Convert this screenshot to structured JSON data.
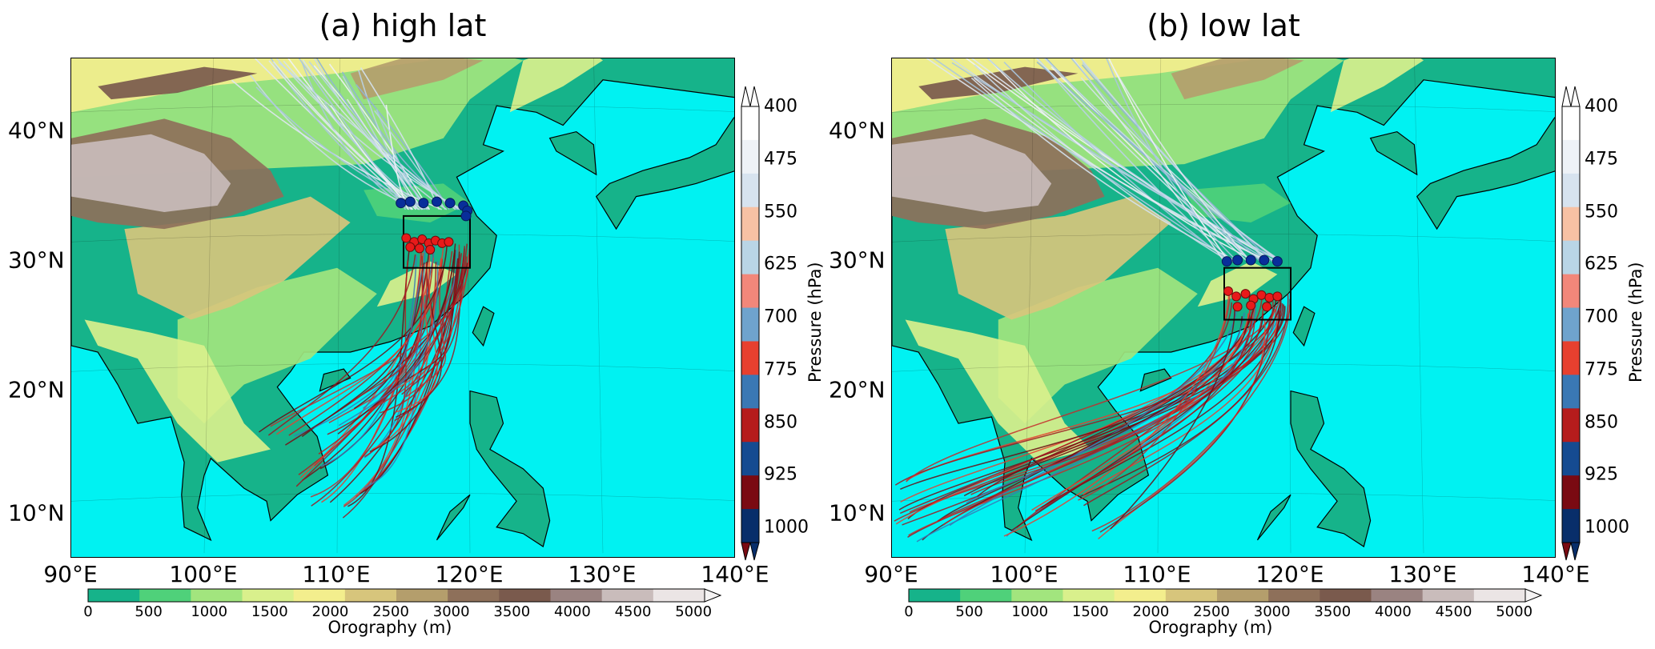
{
  "panels": [
    {
      "title": "(a) high lat",
      "traj_color_label": "Pressure (hPa)",
      "box": {
        "lon": [
          115,
          120
        ],
        "lat": [
          28,
          32
        ]
      },
      "start_points_blue_lonlat": [
        [
          114.8,
          33.0
        ],
        [
          115.5,
          33.1
        ],
        [
          116.5,
          33.0
        ],
        [
          117.5,
          33.1
        ],
        [
          118.5,
          33.0
        ],
        [
          119.5,
          32.8
        ],
        [
          119.8,
          32.4
        ],
        [
          119.7,
          32.0
        ]
      ],
      "start_points_red_lonlat": [
        [
          115.2,
          30.3
        ],
        [
          115.8,
          30.0
        ],
        [
          116.4,
          30.2
        ],
        [
          116.9,
          29.9
        ],
        [
          117.4,
          30.1
        ],
        [
          117.9,
          29.9
        ],
        [
          118.4,
          30.0
        ],
        [
          115.5,
          29.6
        ],
        [
          116.2,
          29.5
        ],
        [
          117.0,
          29.4
        ]
      ],
      "traj_blue_endpoints_lonlat": [
        [
          104,
          45
        ],
        [
          106,
          45
        ],
        [
          108,
          44.5
        ],
        [
          110,
          44
        ],
        [
          112,
          43.5
        ],
        [
          108,
          45.5
        ],
        [
          105,
          44
        ],
        [
          103,
          43
        ],
        [
          110,
          42
        ],
        [
          113,
          41.5
        ]
      ],
      "traj_red_endpoints_lonlat": [
        [
          106,
          11
        ],
        [
          108,
          9.5
        ],
        [
          110,
          8.5
        ],
        [
          111,
          10
        ],
        [
          108,
          12.5
        ],
        [
          106,
          14
        ],
        [
          112,
          13
        ],
        [
          113,
          16
        ],
        [
          114,
          18
        ],
        [
          104,
          15
        ],
        [
          109,
          15
        ],
        [
          111,
          17
        ]
      ]
    },
    {
      "title": "(b) low lat",
      "traj_color_label": "Pressure (hPa)",
      "box": {
        "lon": [
          115,
          120
        ],
        "lat": [
          24,
          28
        ]
      },
      "start_points_blue_lonlat": [
        [
          115.2,
          28.5
        ],
        [
          116.0,
          28.6
        ],
        [
          117.0,
          28.6
        ],
        [
          118.0,
          28.6
        ],
        [
          119.0,
          28.5
        ]
      ],
      "start_points_red_lonlat": [
        [
          115.3,
          26.2
        ],
        [
          115.9,
          25.8
        ],
        [
          116.6,
          26.0
        ],
        [
          117.2,
          25.6
        ],
        [
          117.8,
          25.9
        ],
        [
          118.4,
          25.7
        ],
        [
          119.0,
          25.8
        ],
        [
          116.0,
          25.0
        ],
        [
          117.0,
          25.1
        ],
        [
          118.2,
          25.0
        ]
      ],
      "traj_blue_endpoints_lonlat": [
        [
          92,
          45.5
        ],
        [
          95,
          45
        ],
        [
          98,
          45
        ],
        [
          101,
          44.5
        ],
        [
          104,
          44
        ],
        [
          100,
          45.5
        ],
        [
          96,
          44
        ],
        [
          103,
          45.5
        ],
        [
          106,
          44.5
        ]
      ],
      "traj_red_endpoints_lonlat": [
        [
          90,
          7.5
        ],
        [
          90,
          9
        ],
        [
          90,
          10.5
        ],
        [
          91,
          6.5
        ],
        [
          93,
          8
        ],
        [
          95,
          9.5
        ],
        [
          98,
          7
        ],
        [
          100,
          8.5
        ],
        [
          103,
          9.5
        ],
        [
          105,
          7
        ]
      ]
    }
  ],
  "lon_ticks": [
    "90°E",
    "100°E",
    "110°E",
    "120°E",
    "130°E",
    "140°E"
  ],
  "lat_ticks": [
    "10°N",
    "20°N",
    "30°N",
    "40°N"
  ],
  "pressure_ticks": [
    "400",
    "475",
    "550",
    "625",
    "700",
    "775",
    "850",
    "925",
    "1000"
  ],
  "pressure_colors": [
    "#ffffff",
    "#eef2f7",
    "#d7e3ef",
    "#f7c1a4",
    "#b9d5e6",
    "#f2877a",
    "#6fa3cd",
    "#e7402f",
    "#3a78b4",
    "#b51c1c",
    "#154b91",
    "#7a0a12",
    "#082e6a"
  ],
  "orography_label": "Orography (m)",
  "orography_ticks": [
    "0",
    "500",
    "1000",
    "1500",
    "2000",
    "2500",
    "3000",
    "3500",
    "4000",
    "4500",
    "5000"
  ],
  "orography_colors": [
    "#16b38a",
    "#4fd17a",
    "#a2e57e",
    "#d9f08c",
    "#f3ee8d",
    "#d7c57c",
    "#b49e6c",
    "#8e705a",
    "#7a5a4d",
    "#9a8381",
    "#c9bcbb",
    "#ebe5e5"
  ],
  "ocean_color": "#00f2f2"
}
